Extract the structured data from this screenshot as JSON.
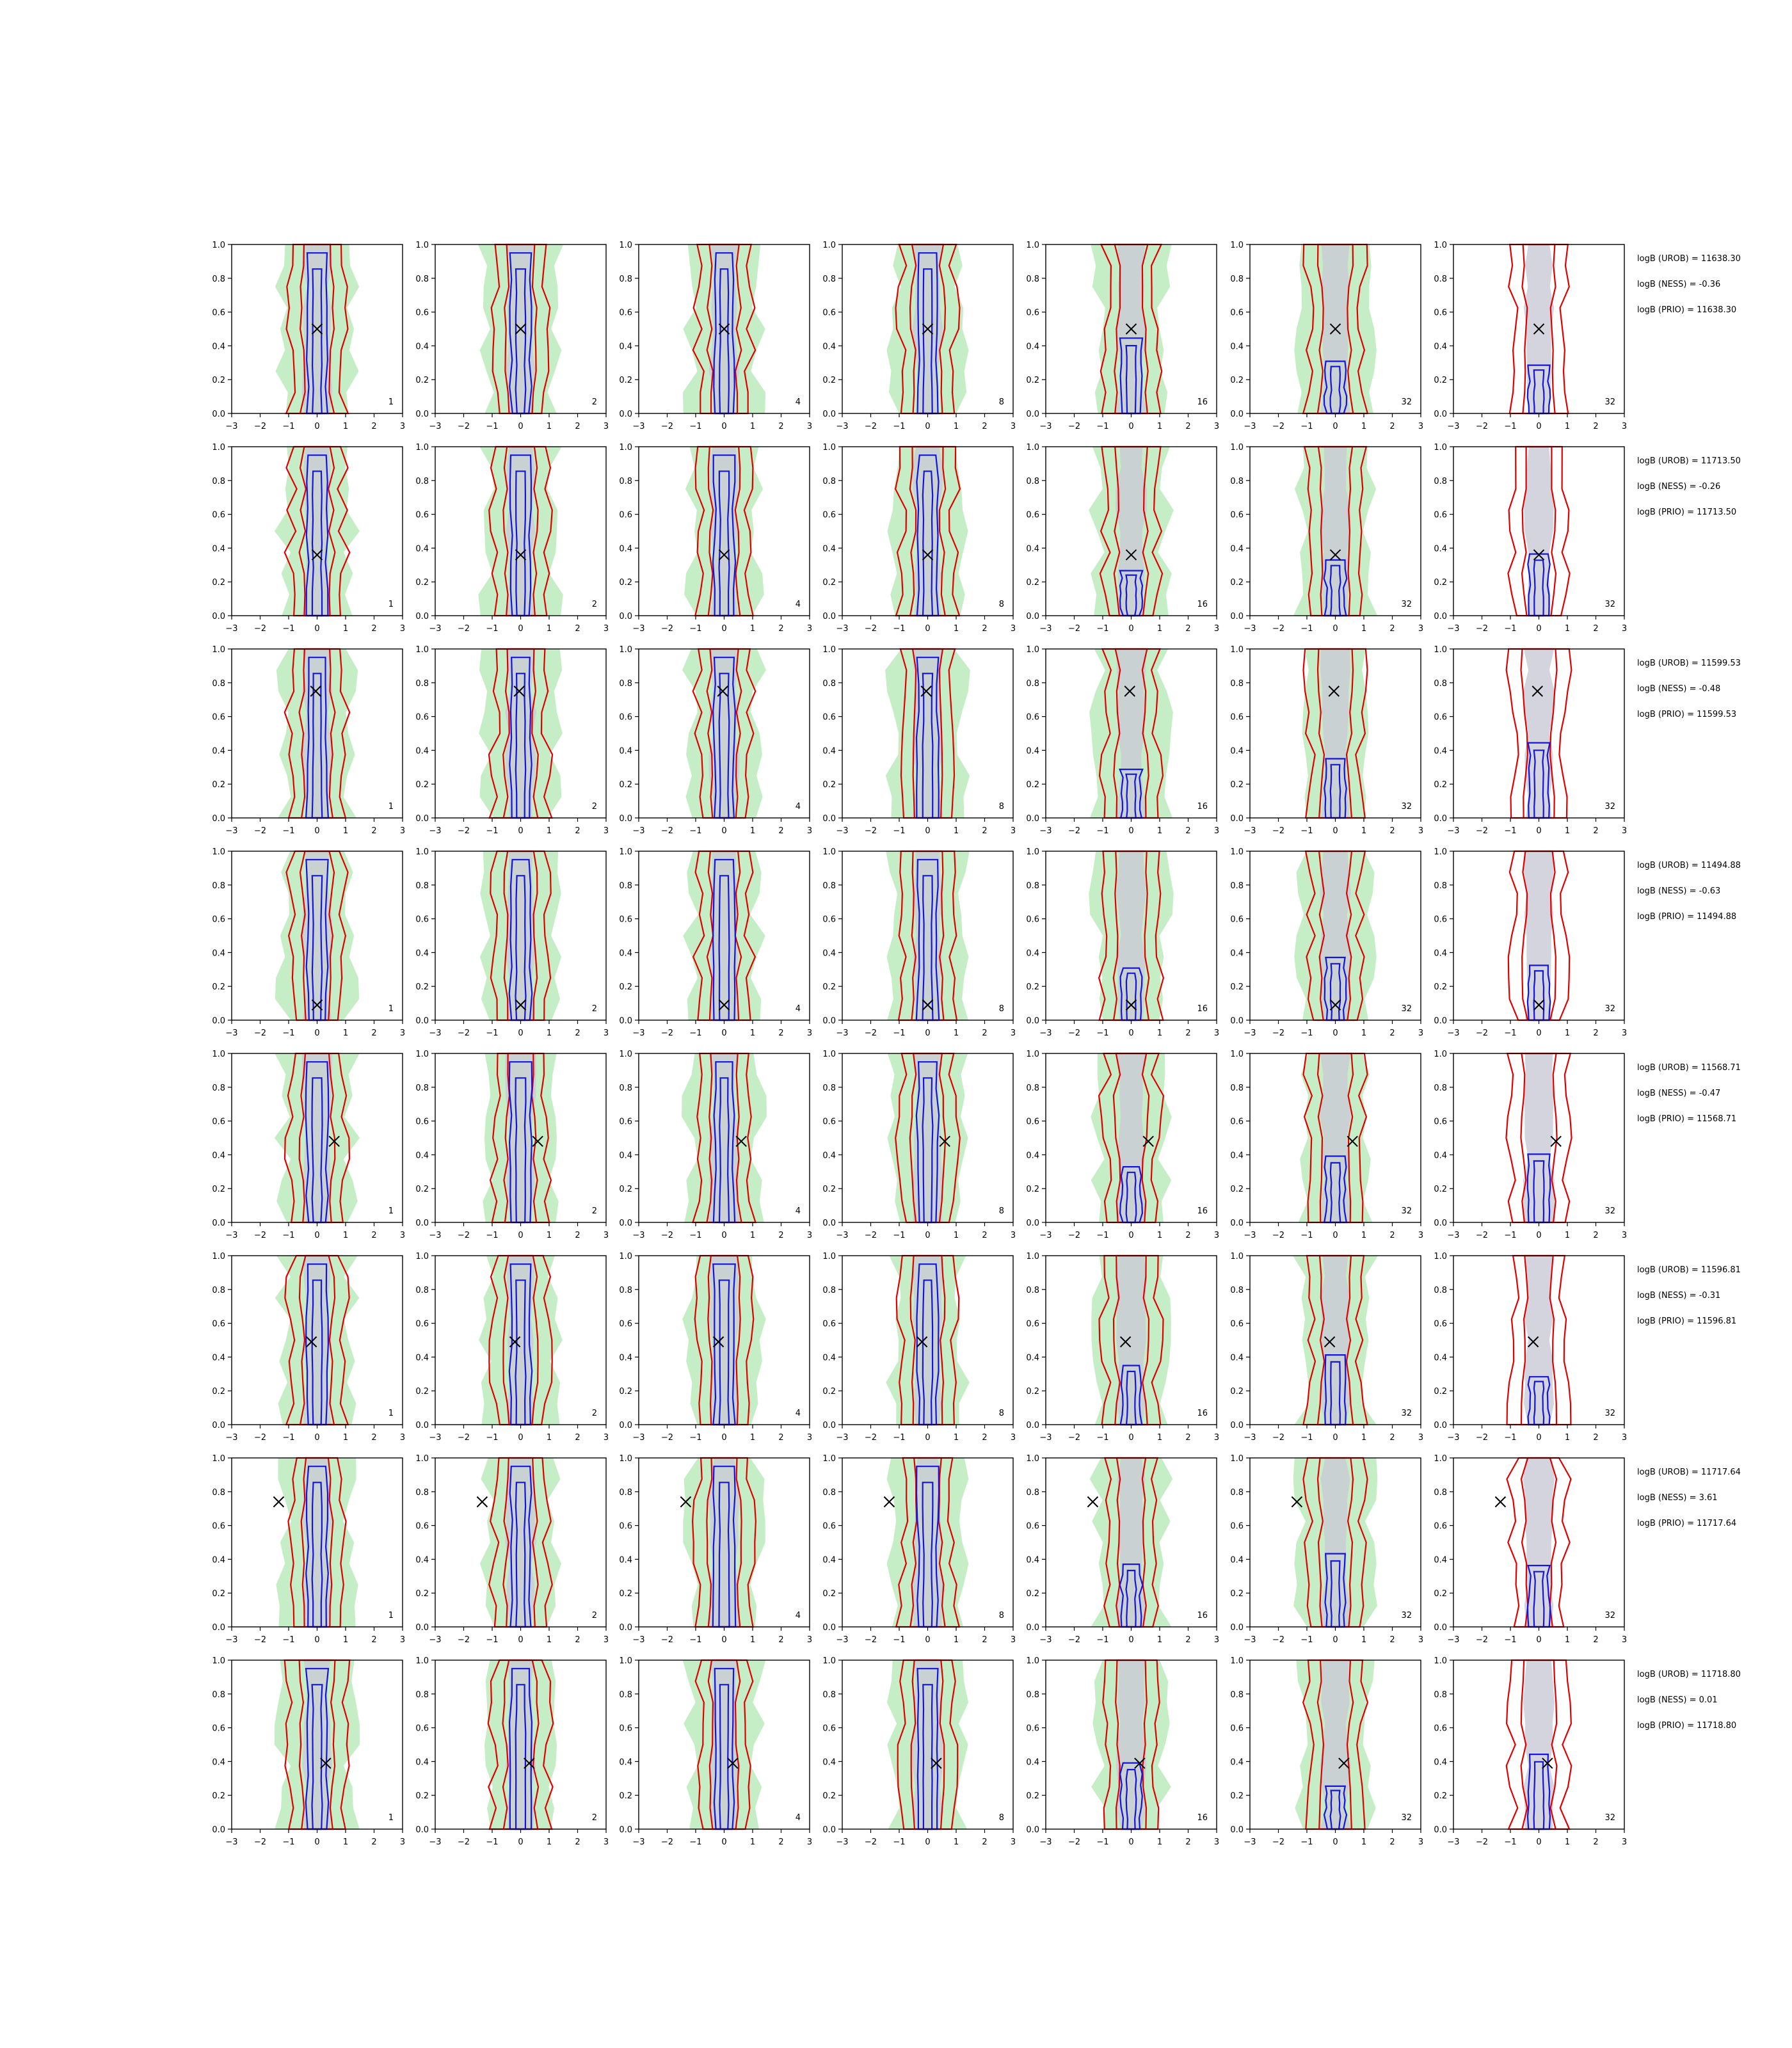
{
  "figure": {
    "columns": 7,
    "rows": 8,
    "x_ticks": [
      -3,
      -2,
      -1,
      0,
      1,
      2,
      3
    ],
    "y_ticks": [
      0.0,
      0.2,
      0.4,
      0.6,
      0.8,
      1.0
    ],
    "xlim": [
      -3,
      3
    ],
    "ylim": [
      0,
      1
    ],
    "panel_labels": [
      "1",
      "2",
      "4",
      "8",
      "16",
      "32",
      "32"
    ],
    "colors": {
      "fill": "#c6eec6",
      "inner_fill": "#c9c9d6",
      "outer_contour": "#e00000",
      "inner_contour": "#1414e0",
      "marker": "#000000"
    }
  },
  "chart_data": {
    "type": "contour-grid",
    "markers": [
      {
        "row": 1,
        "x": 0.0,
        "y": 0.5
      },
      {
        "row": 2,
        "x": 0.0,
        "y": 0.36
      },
      {
        "row": 3,
        "x": -0.05,
        "y": 0.75
      },
      {
        "row": 4,
        "x": 0.0,
        "y": 0.09
      },
      {
        "row": 5,
        "x": 0.6,
        "y": 0.48
      },
      {
        "row": 6,
        "x": -0.2,
        "y": 0.49
      },
      {
        "row": 7,
        "x": -1.35,
        "y": 0.74
      },
      {
        "row": 8,
        "x": 0.3,
        "y": 0.39
      }
    ],
    "annotations": [
      [
        "logB (UROB) = 11638.30",
        "logB (NESS) = -0.36",
        "logB (PRIO) = 11638.30"
      ],
      [
        "logB (UROB) = 11713.50",
        "logB (NESS) = -0.26",
        "logB (PRIO) = 11713.50"
      ],
      [
        "logB (UROB) = 11599.53",
        "logB (NESS) = -0.48",
        "logB (PRIO) = 11599.53"
      ],
      [
        "logB (UROB) = 11494.88",
        "logB (NESS) = -0.63",
        "logB (PRIO) = 11494.88"
      ],
      [
        "logB (UROB) = 11568.71",
        "logB (NESS) = -0.47",
        "logB (PRIO) = 11568.71"
      ],
      [
        "logB (UROB) = 11596.81",
        "logB (NESS) = -0.31",
        "logB (PRIO) = 11596.81"
      ],
      [
        "logB (UROB) = 11717.64",
        "logB (NESS) = 3.61",
        "logB (PRIO) = 11717.64"
      ],
      [
        "logB (UROB) = 11718.80",
        "logB (NESS) = 0.01",
        "logB (PRIO) = 11718.80"
      ]
    ]
  }
}
